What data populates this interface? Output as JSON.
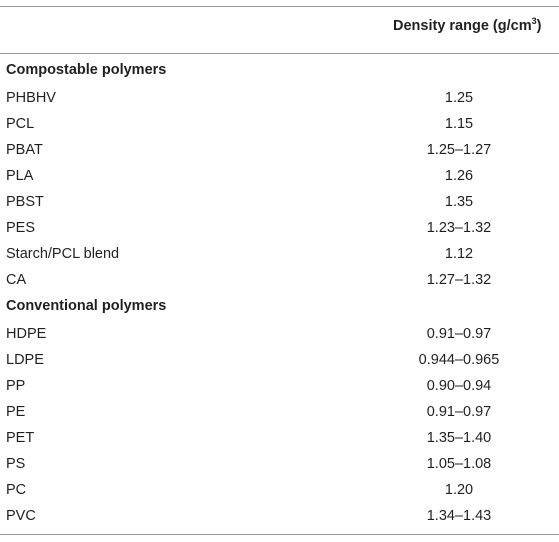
{
  "table": {
    "header": {
      "column2_label": "Density range (g/cm",
      "column2_sup": "3",
      "column2_close": ")"
    },
    "sections": [
      {
        "title": "Compostable polymers",
        "rows": [
          {
            "name": "PHBHV",
            "value": "1.25"
          },
          {
            "name": "PCL",
            "value": "1.15"
          },
          {
            "name": "PBAT",
            "value": "1.25–1.27"
          },
          {
            "name": "PLA",
            "value": "1.26"
          },
          {
            "name": "PBST",
            "value": "1.35"
          },
          {
            "name": "PES",
            "value": "1.23–1.32"
          },
          {
            "name": "Starch/PCL blend",
            "value": "1.12"
          },
          {
            "name": "CA",
            "value": "1.27–1.32"
          }
        ]
      },
      {
        "title": "Conventional polymers",
        "rows": [
          {
            "name": "HDPE",
            "value": "0.91–0.97"
          },
          {
            "name": "LDPE",
            "value": "0.944–0.965"
          },
          {
            "name": "PP",
            "value": "0.90–0.94"
          },
          {
            "name": "PE",
            "value": "0.91–0.97"
          },
          {
            "name": "PET",
            "value": "1.35–1.40"
          },
          {
            "name": "PS",
            "value": "1.05–1.08"
          },
          {
            "name": "PC",
            "value": "1.20"
          },
          {
            "name": "PVC",
            "value": "1.34–1.43"
          }
        ]
      }
    ]
  }
}
